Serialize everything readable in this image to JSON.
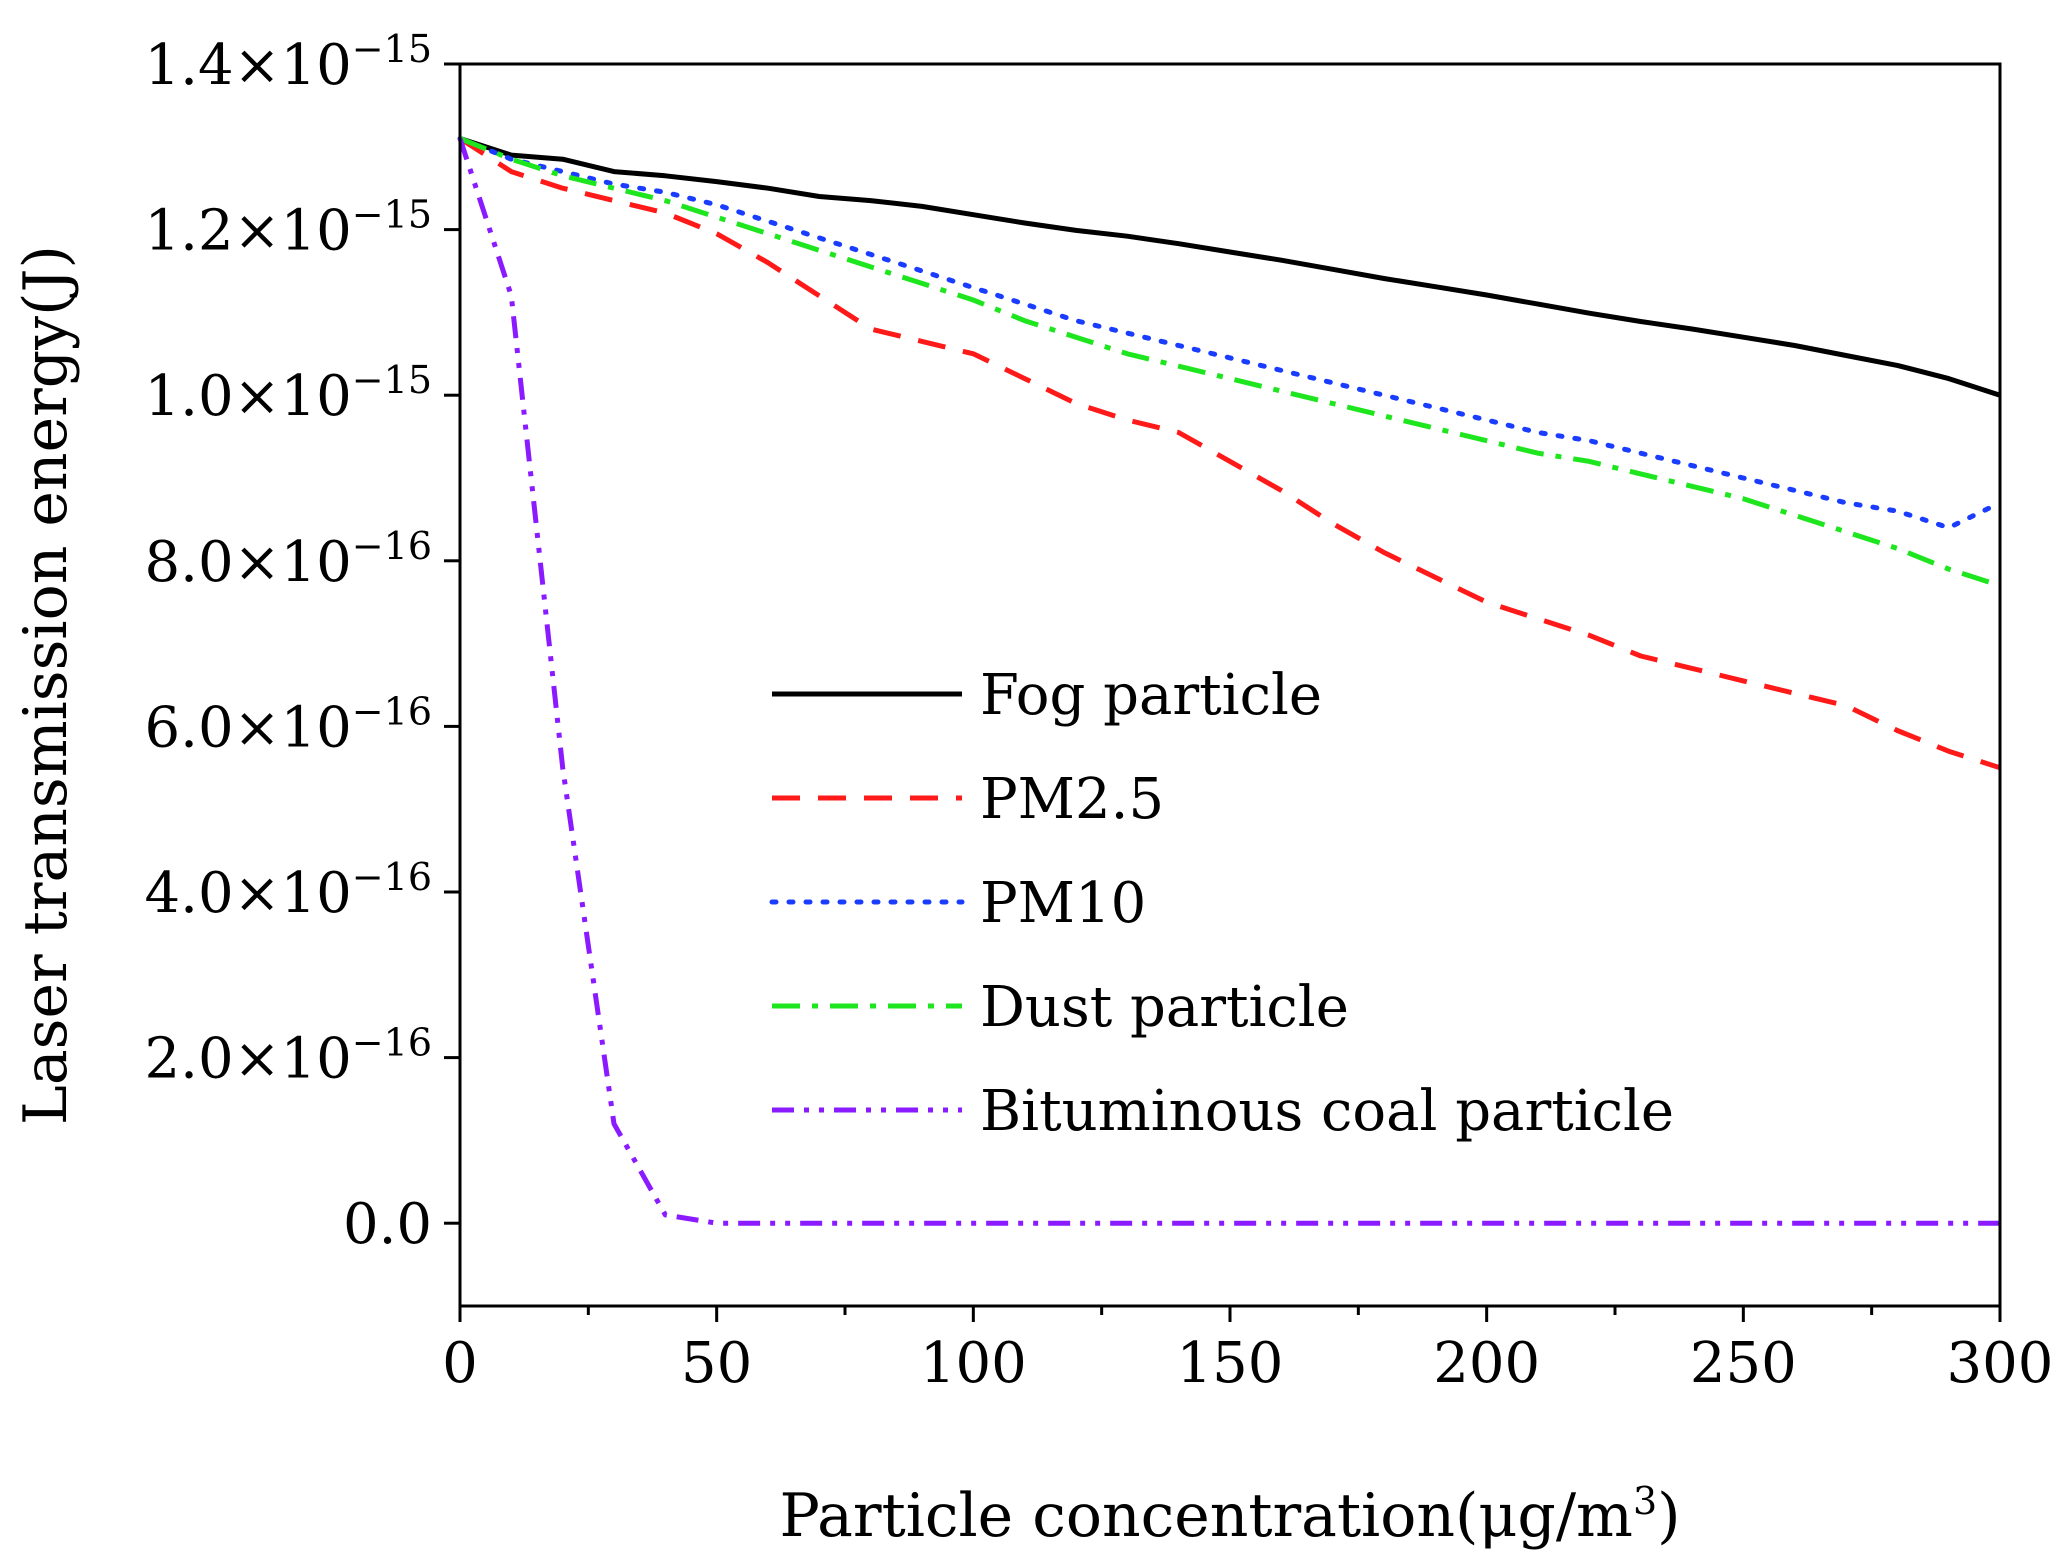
{
  "chart_data": {
    "type": "line",
    "title": "",
    "xlabel": "Particle concentration(μg/m³)",
    "xlabel_main": "Particle concentration(μg/m",
    "xlabel_sup": "3",
    "xlabel_close": ")",
    "ylabel": "Laser transmission energy(J)",
    "xlim": [
      0,
      300
    ],
    "ylim": [
      -1e-16,
      1.4e-15
    ],
    "x_ticks": [
      0,
      50,
      100,
      150,
      200,
      250,
      300
    ],
    "x_tick_labels": [
      "0",
      "50",
      "100",
      "150",
      "200",
      "250",
      "300"
    ],
    "y_ticks": [
      0,
      2e-16,
      4e-16,
      6e-16,
      8e-16,
      1e-15,
      1.2e-15,
      1.4e-15
    ],
    "y_tick_labels": [
      {
        "mant": "0.0",
        "exp": ""
      },
      {
        "mant": "2.0×10",
        "exp": "−16"
      },
      {
        "mant": "4.0×10",
        "exp": "−16"
      },
      {
        "mant": "6.0×10",
        "exp": "−16"
      },
      {
        "mant": "8.0×10",
        "exp": "−16"
      },
      {
        "mant": "1.0×10",
        "exp": "−15"
      },
      {
        "mant": "1.2×10",
        "exp": "−15"
      },
      {
        "mant": "1.4×10",
        "exp": "−15"
      }
    ],
    "legend_position": "center-right",
    "grid": false,
    "x": [
      0,
      10,
      20,
      30,
      40,
      50,
      60,
      70,
      80,
      90,
      100,
      110,
      120,
      130,
      140,
      150,
      160,
      170,
      180,
      190,
      200,
      210,
      220,
      230,
      240,
      250,
      260,
      270,
      280,
      290,
      300
    ],
    "series": [
      {
        "name": "Fog particle",
        "color": "#000000",
        "style": "solid",
        "values": [
          1.31e-15,
          1.29e-15,
          1.285e-15,
          1.27e-15,
          1.265e-15,
          1.258e-15,
          1.25e-15,
          1.24e-15,
          1.235e-15,
          1.228e-15,
          1.218e-15,
          1.208e-15,
          1.199e-15,
          1.192e-15,
          1.183e-15,
          1.173e-15,
          1.163e-15,
          1.152e-15,
          1.141e-15,
          1.131e-15,
          1.121e-15,
          1.11e-15,
          1.099e-15,
          1.089e-15,
          1.08e-15,
          1.07e-15,
          1.06e-15,
          1.048e-15,
          1.036e-15,
          1.02e-15,
          1e-15
        ]
      },
      {
        "name": "PM2.5",
        "color": "#ff1a1a",
        "style": "dashed",
        "values": [
          1.31e-15,
          1.27e-15,
          1.25e-15,
          1.235e-15,
          1.22e-15,
          1.195e-15,
          1.16e-15,
          1.12e-15,
          1.08e-15,
          1.065e-15,
          1.05e-15,
          1.02e-15,
          9.9e-16,
          9.7e-16,
          9.55e-16,
          9.2e-16,
          8.85e-16,
          8.45e-16,
          8.1e-16,
          7.8e-16,
          7.5e-16,
          7.3e-16,
          7.1e-16,
          6.85e-16,
          6.7e-16,
          6.55e-16,
          6.4e-16,
          6.25e-16,
          5.95e-16,
          5.7e-16,
          5.5e-16
        ]
      },
      {
        "name": "PM10",
        "color": "#1a3cff",
        "style": "dotted",
        "values": [
          1.31e-15,
          1.285e-15,
          1.27e-15,
          1.255e-15,
          1.245e-15,
          1.23e-15,
          1.21e-15,
          1.19e-15,
          1.17e-15,
          1.15e-15,
          1.13e-15,
          1.11e-15,
          1.09e-15,
          1.075e-15,
          1.06e-15,
          1.045e-15,
          1.03e-15,
          1.015e-15,
          1e-15,
          9.85e-16,
          9.7e-16,
          9.55e-16,
          9.45e-16,
          9.3e-16,
          9.15e-16,
          9e-16,
          8.85e-16,
          8.7e-16,
          8.6e-16,
          8.4e-16,
          8.7e-16
        ]
      },
      {
        "name": "Dust particle",
        "color": "#1ee61e",
        "style": "dashdot",
        "values": [
          1.31e-15,
          1.285e-15,
          1.265e-15,
          1.25e-15,
          1.235e-15,
          1.215e-15,
          1.195e-15,
          1.175e-15,
          1.155e-15,
          1.135e-15,
          1.115e-15,
          1.09e-15,
          1.07e-15,
          1.05e-15,
          1.035e-15,
          1.02e-15,
          1.005e-15,
          9.9e-16,
          9.75e-16,
          9.6e-16,
          9.45e-16,
          9.3e-16,
          9.2e-16,
          9.05e-16,
          8.9e-16,
          8.75e-16,
          8.55e-16,
          8.35e-16,
          8.15e-16,
          7.9e-16,
          7.7e-16
        ]
      },
      {
        "name": "Bituminous coal particle",
        "color": "#8a1aff",
        "style": "dashdotdot",
        "values": [
          1.31e-15,
          1.12e-15,
          5.5e-16,
          1.2e-16,
          1e-17,
          0,
          0,
          0,
          0,
          0,
          0,
          0,
          0,
          0,
          0,
          0,
          0,
          0,
          0,
          0,
          0,
          0,
          0,
          0,
          0,
          0,
          0,
          0,
          0,
          0,
          0
        ]
      }
    ]
  }
}
